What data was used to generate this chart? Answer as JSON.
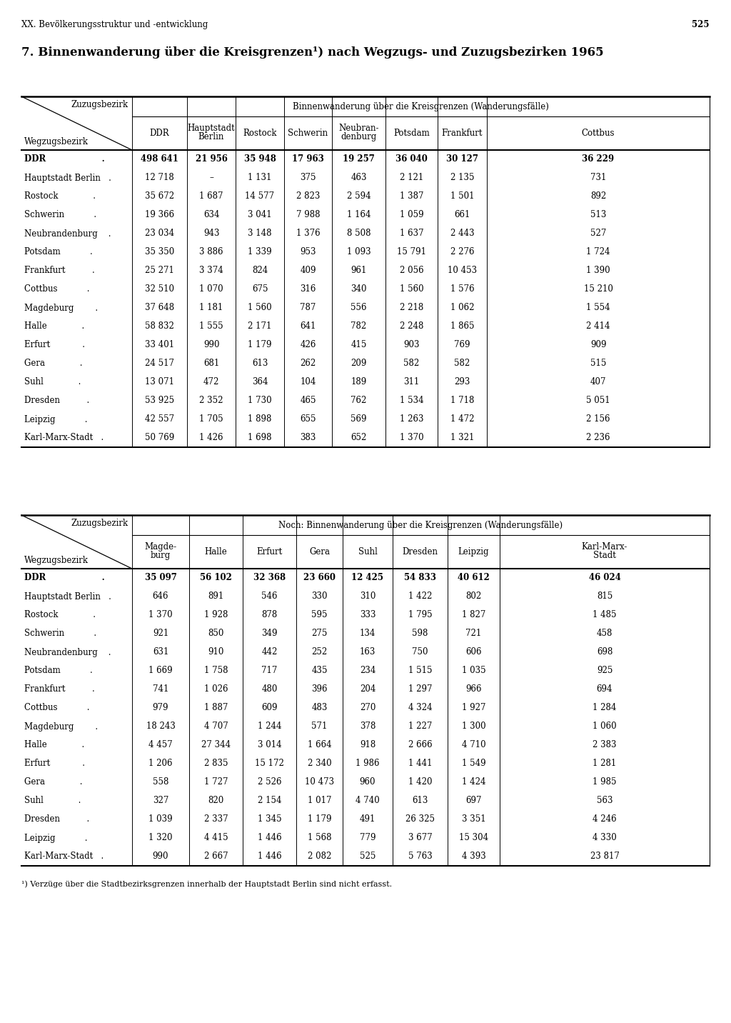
{
  "page_header": "XX. Bevölkerungsstruktur und -entwicklung",
  "page_number": "525",
  "title": "7. Binnenwanderung über die Kreisgrenzen¹) nach Wegzugs- und Zuzugsbezirken 1965",
  "table1_header_main": "Binnenwanderung über die Kreisgrenzen (Wanderungsfälle)",
  "table1_col_diag_top": "Zuzugsbezirk",
  "table1_col_diag_bot": "Wegzugsbezirk",
  "table1_col_headers": [
    "DDR",
    "Hauptstadt\nBerlin",
    "Rostock",
    "Schwerin",
    "Neubran-\ndenburg",
    "Potsdam",
    "Frankfurt",
    "Cottbus"
  ],
  "table1_rows": [
    [
      "DDR                   .",
      "498 641",
      "21 956",
      "35 948",
      "17 963",
      "19 257",
      "36 040",
      "30 127",
      "36 229"
    ],
    [
      "Hauptstadt Berlin   .",
      "12 718",
      "–",
      "1 131",
      "375",
      "463",
      "2 121",
      "2 135",
      "731"
    ],
    [
      "Rostock             .",
      "35 672",
      "1 687",
      "14 577",
      "2 823",
      "2 594",
      "1 387",
      "1 501",
      "892"
    ],
    [
      "Schwerin           .",
      "19 366",
      "634",
      "3 041",
      "7 988",
      "1 164",
      "1 059",
      "661",
      "513"
    ],
    [
      "Neubrandenburg    .",
      "23 034",
      "943",
      "3 148",
      "1 376",
      "8 508",
      "1 637",
      "2 443",
      "527"
    ],
    [
      "Potsdam           .",
      "35 350",
      "3 886",
      "1 339",
      "953",
      "1 093",
      "15 791",
      "2 276",
      "1 724"
    ],
    [
      "Frankfurt          .",
      "25 271",
      "3 374",
      "824",
      "409",
      "961",
      "2 056",
      "10 453",
      "1 390"
    ],
    [
      "Cottbus           .",
      "32 510",
      "1 070",
      "675",
      "316",
      "340",
      "1 560",
      "1 576",
      "15 210"
    ],
    [
      "Magdeburg        .",
      "37 648",
      "1 181",
      "1 560",
      "787",
      "556",
      "2 218",
      "1 062",
      "1 554"
    ],
    [
      "Halle             .",
      "58 832",
      "1 555",
      "2 171",
      "641",
      "782",
      "2 248",
      "1 865",
      "2 414"
    ],
    [
      "Erfurt            .",
      "33 401",
      "990",
      "1 179",
      "426",
      "415",
      "903",
      "769",
      "909"
    ],
    [
      "Gera             .",
      "24 517",
      "681",
      "613",
      "262",
      "209",
      "582",
      "582",
      "515"
    ],
    [
      "Suhl             .",
      "13 071",
      "472",
      "364",
      "104",
      "189",
      "311",
      "293",
      "407"
    ],
    [
      "Dresden          .",
      "53 925",
      "2 352",
      "1 730",
      "465",
      "762",
      "1 534",
      "1 718",
      "5 051"
    ],
    [
      "Leipzig           .",
      "42 557",
      "1 705",
      "1 898",
      "655",
      "569",
      "1 263",
      "1 472",
      "2 156"
    ],
    [
      "Karl-Marx-Stadt   .",
      "50 769",
      "1 426",
      "1 698",
      "383",
      "652",
      "1 370",
      "1 321",
      "2 236"
    ]
  ],
  "table2_header_main": "Noch: Binnenwanderung über die Kreisgrenzen (Wanderungsfälle)",
  "table2_col_diag_top": "Zuzugsbezirk",
  "table2_col_diag_bot": "Wegzugsbezirk",
  "table2_col_headers": [
    "Magde-\nburg",
    "Halle",
    "Erfurt",
    "Gera",
    "Suhl",
    "Dresden",
    "Leipzig",
    "Karl-Marx-\nStadt"
  ],
  "table2_rows": [
    [
      "DDR                   .",
      "35 097",
      "56 102",
      "32 368",
      "23 660",
      "12 425",
      "54 833",
      "40 612",
      "46 024"
    ],
    [
      "Hauptstadt Berlin   .",
      "646",
      "891",
      "546",
      "330",
      "310",
      "1 422",
      "802",
      "815"
    ],
    [
      "Rostock             .",
      "1 370",
      "1 928",
      "878",
      "595",
      "333",
      "1 795",
      "1 827",
      "1 485"
    ],
    [
      "Schwerin           .",
      "921",
      "850",
      "349",
      "275",
      "134",
      "598",
      "721",
      "458"
    ],
    [
      "Neubrandenburg    .",
      "631",
      "910",
      "442",
      "252",
      "163",
      "750",
      "606",
      "698"
    ],
    [
      "Potsdam           .",
      "1 669",
      "1 758",
      "717",
      "435",
      "234",
      "1 515",
      "1 035",
      "925"
    ],
    [
      "Frankfurt          .",
      "741",
      "1 026",
      "480",
      "396",
      "204",
      "1 297",
      "966",
      "694"
    ],
    [
      "Cottbus           .",
      "979",
      "1 887",
      "609",
      "483",
      "270",
      "4 324",
      "1 927",
      "1 284"
    ],
    [
      "Magdeburg        .",
      "18 243",
      "4 707",
      "1 244",
      "571",
      "378",
      "1 227",
      "1 300",
      "1 060"
    ],
    [
      "Halle             .",
      "4 457",
      "27 344",
      "3 014",
      "1 664",
      "918",
      "2 666",
      "4 710",
      "2 383"
    ],
    [
      "Erfurt            .",
      "1 206",
      "2 835",
      "15 172",
      "2 340",
      "1 986",
      "1 441",
      "1 549",
      "1 281"
    ],
    [
      "Gera             .",
      "558",
      "1 727",
      "2 526",
      "10 473",
      "960",
      "1 420",
      "1 424",
      "1 985"
    ],
    [
      "Suhl             .",
      "327",
      "820",
      "2 154",
      "1 017",
      "4 740",
      "613",
      "697",
      "563"
    ],
    [
      "Dresden          .",
      "1 039",
      "2 337",
      "1 345",
      "1 179",
      "491",
      "26 325",
      "3 351",
      "4 246"
    ],
    [
      "Leipzig           .",
      "1 320",
      "4 415",
      "1 446",
      "1 568",
      "779",
      "3 677",
      "15 304",
      "4 330"
    ],
    [
      "Karl-Marx-Stadt   .",
      "990",
      "2 667",
      "1 446",
      "2 082",
      "525",
      "5 763",
      "4 393",
      "23 817"
    ]
  ],
  "footnote": "¹) Verzüge über die Stadtbezirksgrenzen innerhalb der Hauptstadt Berlin sind nicht erfasst.",
  "bg_color": "#ffffff",
  "text_color": "#000000"
}
